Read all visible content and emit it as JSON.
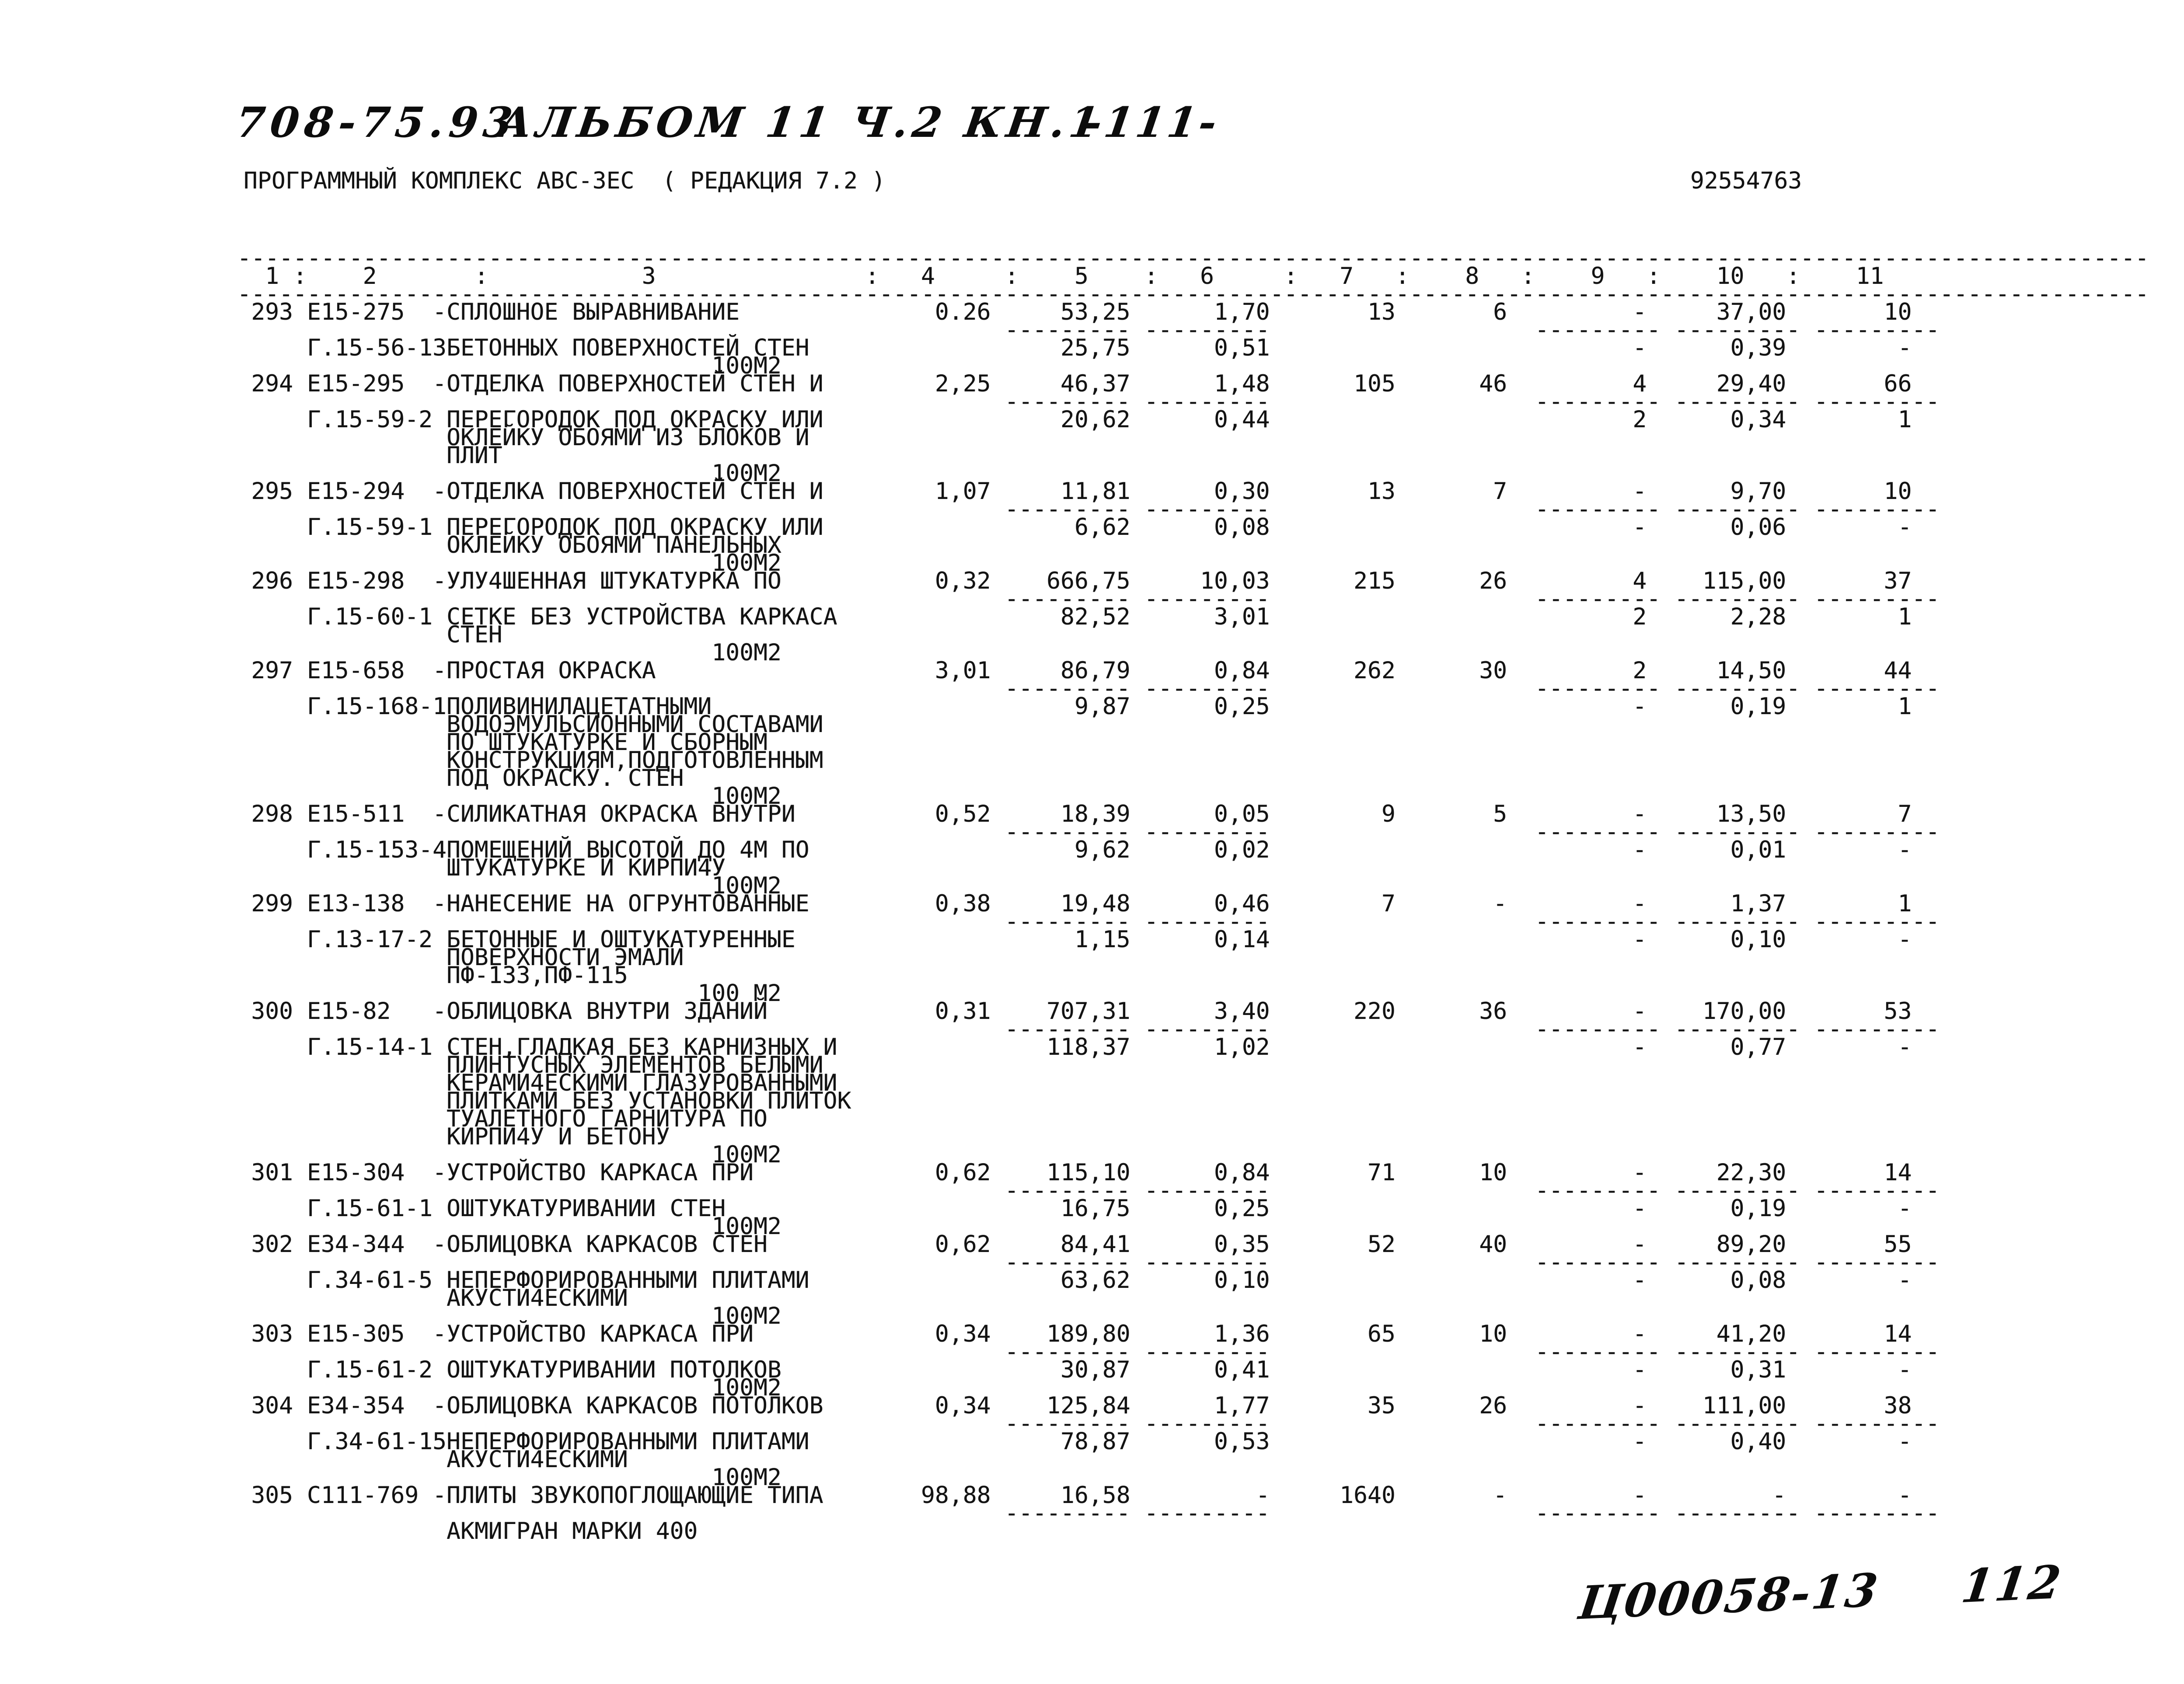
{
  "header": {
    "doc_code": "708-75.93",
    "album": "АЛЬБОМ 11 Ч.2 КН.1",
    "page_number": "-111-",
    "subtitle": "ПРОГРАММНЫЙ КОМПЛЕКС АВС-ЗЕС  ( РЕДАКЦИЯ 7.2 )",
    "doc_number": "92554763"
  },
  "table": {
    "column_headers": [
      "1",
      "2",
      "3",
      "4",
      "5",
      "6",
      "7",
      "8",
      "9",
      "10",
      "11"
    ],
    "rows": [
      {
        "num": "293",
        "code1": "Е15-275",
        "code2": "Г.15-56-13",
        "desc": [
          "-СПЛОШНОЕ ВЫРАВНИВАНИЕ",
          "БЕТОННЫХ ПОВЕРХНОСТЕЙ СТЕН"
        ],
        "unit": "100М2",
        "main": [
          "0.26",
          "53,25",
          "1,70",
          "13",
          "6",
          "-",
          "37,00",
          "10"
        ],
        "sub": [
          "25,75",
          "0,51",
          "-",
          "0,39",
          "-"
        ]
      },
      {
        "num": "294",
        "code1": "Е15-295",
        "code2": "Г.15-59-2",
        "desc": [
          "-ОТДЕЛКА ПОВЕРХНОСТЕЙ СТЕН И",
          "ПЕРЕГОРОДОК ПОД ОКРАСКУ ИЛИ",
          "ОКЛЕЙКУ ОБОЯМИ ИЗ БЛОКОВ И",
          "ПЛИТ"
        ],
        "unit": "100М2",
        "main": [
          "2,25",
          "46,37",
          "1,48",
          "105",
          "46",
          "4",
          "29,40",
          "66"
        ],
        "sub": [
          "20,62",
          "0,44",
          "2",
          "0,34",
          "1"
        ]
      },
      {
        "num": "295",
        "code1": "Е15-294",
        "code2": "Г.15-59-1",
        "desc": [
          "-ОТДЕЛКА ПОВЕРХНОСТЕЙ СТЕН И",
          "ПЕРЕГОРОДОК ПОД ОКРАСКУ ИЛИ",
          "ОКЛЕЙКУ ОБОЯМИ ПАНЕЛЬНЫХ"
        ],
        "unit": "100М2",
        "main": [
          "1,07",
          "11,81",
          "0,30",
          "13",
          "7",
          "-",
          "9,70",
          "10"
        ],
        "sub": [
          "6,62",
          "0,08",
          "-",
          "0,06",
          "-"
        ]
      },
      {
        "num": "296",
        "code1": "Е15-298",
        "code2": "Г.15-60-1",
        "desc": [
          "-УЛУ4ШЕННАЯ ШТУКАТУРКА ПО",
          "СЕТКЕ БЕЗ УСТРОЙСТВА КАРКАСА",
          "СТЕН"
        ],
        "unit": "100М2",
        "main": [
          "0,32",
          "666,75",
          "10,03",
          "215",
          "26",
          "4",
          "115,00",
          "37"
        ],
        "sub": [
          "82,52",
          "3,01",
          "2",
          "2,28",
          "1"
        ]
      },
      {
        "num": "297",
        "code1": "Е15-658",
        "code2": "Г.15-168-1",
        "desc": [
          "-ПРОСТАЯ ОКРАСКА",
          "ПОЛИВИНИЛАЦЕТАТНЫМИ",
          "ВОДОЭМУЛЬСИОННЫМИ СОСТАВАМИ",
          "ПО ШТУКАТУРКЕ И СБОРНЫМ",
          "КОНСТРУКЦИЯМ,ПОДГОТОВЛЕННЫМ",
          "ПОД ОКРАСКУ. СТЕН"
        ],
        "unit": "100М2",
        "main": [
          "3,01",
          "86,79",
          "0,84",
          "262",
          "30",
          "2",
          "14,50",
          "44"
        ],
        "sub": [
          "9,87",
          "0,25",
          "-",
          "0,19",
          "1"
        ]
      },
      {
        "num": "298",
        "code1": "Е15-511",
        "code2": "Г.15-153-4",
        "desc": [
          "-СИЛИКАТНАЯ ОКРАСКА ВНУТРИ",
          "ПОМЕЩЕНИЙ ВЫСОТОЙ ДО 4М ПО",
          "ШТУКАТУРКЕ И КИРПИ4У"
        ],
        "unit": "100М2",
        "main": [
          "0,52",
          "18,39",
          "0,05",
          "9",
          "5",
          "-",
          "13,50",
          "7"
        ],
        "sub": [
          "9,62",
          "0,02",
          "-",
          "0,01",
          "-"
        ]
      },
      {
        "num": "299",
        "code1": "Е13-138",
        "code2": "Г.13-17-2",
        "desc": [
          "-НАНЕСЕНИЕ НА ОГРУНТОВАННЫЕ",
          "БЕТОННЫЕ И ОШТУКАТУРЕННЫЕ",
          "ПОВЕРХНОСТИ ЭМАЛИ",
          "ПФ-133,ПФ-115"
        ],
        "unit": "100 М2",
        "main": [
          "0,38",
          "19,48",
          "0,46",
          "7",
          "-",
          "-",
          "1,37",
          "1"
        ],
        "sub": [
          "1,15",
          "0,14",
          "-",
          "0,10",
          "-"
        ]
      },
      {
        "num": "300",
        "code1": "Е15-82",
        "code2": "Г.15-14-1",
        "desc": [
          "-ОБЛИЦОВКА ВНУТРИ ЗДАНИЙ",
          "СТЕН,ГЛАДКАЯ БЕЗ КАРНИЗНЫХ И",
          "ПЛИНТУСНЫХ ЭЛЕМЕНТОВ БЕЛЫМИ",
          "КЕРАМИ4ЕСКИМИ ГЛАЗУРОВАННЫМИ",
          "ПЛИТКАМИ БЕЗ УСТАНОВКИ ПЛИТОК",
          "ТУАЛЕТНОГО ГАРНИТУРА ПО",
          "КИРПИ4У И БЕТОНУ"
        ],
        "unit": "100М2",
        "main": [
          "0,31",
          "707,31",
          "3,40",
          "220",
          "36",
          "-",
          "170,00",
          "53"
        ],
        "sub": [
          "118,37",
          "1,02",
          "-",
          "0,77",
          "-"
        ]
      },
      {
        "num": "301",
        "code1": "Е15-304",
        "code2": "Г.15-61-1",
        "desc": [
          "-УСТРОЙСТВО КАРКАСА ПРИ",
          "ОШТУКАТУРИВАНИИ СТЕН"
        ],
        "unit": "100М2",
        "main": [
          "0,62",
          "115,10",
          "0,84",
          "71",
          "10",
          "-",
          "22,30",
          "14"
        ],
        "sub": [
          "16,75",
          "0,25",
          "-",
          "0,19",
          "-"
        ]
      },
      {
        "num": "302",
        "code1": "Е34-344",
        "code2": "Г.34-61-5",
        "desc": [
          "-ОБЛИЦОВКА КАРКАСОВ СТЕН",
          "НЕПЕРФОРИРОВАННЫМИ ПЛИТАМИ",
          "АКУСТИ4ЕСКИМИ"
        ],
        "unit": "100М2",
        "main": [
          "0,62",
          "84,41",
          "0,35",
          "52",
          "40",
          "-",
          "89,20",
          "55"
        ],
        "sub": [
          "63,62",
          "0,10",
          "-",
          "0,08",
          "-"
        ]
      },
      {
        "num": "303",
        "code1": "Е15-305",
        "code2": "Г.15-61-2",
        "desc": [
          "-УСТРОЙСТВО КАРКАСА ПРИ",
          "ОШТУКАТУРИВАНИИ ПОТОЛКОВ"
        ],
        "unit": "100М2",
        "main": [
          "0,34",
          "189,80",
          "1,36",
          "65",
          "10",
          "-",
          "41,20",
          "14"
        ],
        "sub": [
          "30,87",
          "0,41",
          "-",
          "0,31",
          "-"
        ]
      },
      {
        "num": "304",
        "code1": "Е34-354",
        "code2": "Г.34-61-15",
        "desc": [
          "-ОБЛИЦОВКА КАРКАСОВ ПОТОЛКОВ",
          "НЕПЕРФОРИРОВАННЫМИ ПЛИТАМИ",
          "АКУСТИ4ЕСКИМИ"
        ],
        "unit": "100М2",
        "main": [
          "0,34",
          "125,84",
          "1,77",
          "35",
          "26",
          "-",
          "111,00",
          "38"
        ],
        "sub": [
          "78,87",
          "0,53",
          "-",
          "0,40",
          "-"
        ]
      },
      {
        "num": "305",
        "code1": "С111-769",
        "code2": "",
        "desc": [
          "-ПЛИТЫ ЗВУКОПОГЛОЩАЮЩИЕ ТИПА",
          "АКМИГРАН МАРКИ 400"
        ],
        "unit": "",
        "main": [
          "98,88",
          "16,58",
          "-",
          "1640",
          "-",
          "-",
          "-",
          "-"
        ],
        "sub": null
      }
    ]
  },
  "footer": {
    "stamp_code": "Ц00058-13",
    "page_ref": "112"
  }
}
